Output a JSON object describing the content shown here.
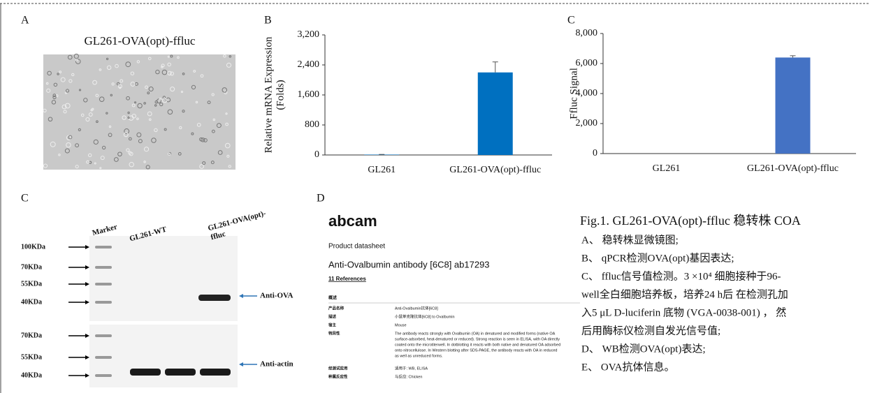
{
  "panel_a": {
    "label": "A",
    "title": "GL261-OVA(opt)-ffluc"
  },
  "chart_data": [
    {
      "type": "bar",
      "panel_label": "B",
      "ylabel": [
        "Relative mRNA Expression",
        "(Folds)"
      ],
      "categories": [
        "GL261",
        "GL261-OVA(opt)-ffluc"
      ],
      "values": [
        10,
        2200
      ],
      "errors": [
        5,
        280
      ],
      "color": "#0070c0",
      "ylim": [
        0,
        3200
      ],
      "yticks": [
        0,
        800,
        {
          "value": 1600,
          "label": "1,600"
        },
        {
          "value": 2400,
          "label": "2,400"
        },
        {
          "value": 3200,
          "label": "3,200"
        }
      ]
    },
    {
      "type": "bar",
      "panel_label": "C",
      "ylabel": [
        "Ffluc Signal"
      ],
      "categories": [
        "GL261",
        "GL261-OVA(opt)-ffluc"
      ],
      "values": [
        0,
        6400
      ],
      "errors": [
        0,
        120
      ],
      "color": "#4472c4",
      "ylim": [
        0,
        8000
      ],
      "yticks": [
        0,
        {
          "value": 2000,
          "label": "2,000"
        },
        {
          "value": 4000,
          "label": "4,000"
        },
        {
          "value": 6000,
          "label": "6,000"
        },
        {
          "value": 8000,
          "label": "8,000"
        }
      ]
    }
  ],
  "blot": {
    "label": "C",
    "lanes": [
      "Marker",
      "GL261-WT",
      [
        "GL261-OVA(opt)-",
        "ffluc"
      ]
    ],
    "markers_top": [
      "100KDa",
      "70KDa",
      "55KDa",
      "40KDa"
    ],
    "markers_bottom": [
      "70KDa",
      "55KDa",
      "40KDa"
    ],
    "bands": [
      "Anti-OVA",
      "Anti-actin"
    ]
  },
  "datasheet": {
    "label": "D",
    "logo": "abcam",
    "subtitle": "Product datasheet",
    "product": "Anti-Ovalbumin antibody [6C8] ab17293",
    "references": "11 References",
    "section": "概述",
    "rows": [
      [
        "产品名称",
        [
          "Anti-Ovalbumin抗体[6C8]"
        ]
      ],
      [
        "描述",
        [
          "小鼠单克隆抗体[6C8] to Ovalbumin"
        ]
      ],
      [
        "宿主",
        [
          "Mouse"
        ]
      ],
      [
        "特异性",
        [
          "The antibody reacts strongly with Ovalbumin (OA) in denatured and modified forms (native OA",
          "surface-adsorbed, heat-denatured or reduced). Strong reaction is seen in ELISA, with OA directly",
          "coated onto the microtiterwell. In dotblotting it reacts with both native and denatured OA adsorbed",
          "onto nitrocellulose. In Western blotting after SDS-PAGE, the antibody reacts with OA in reduced",
          "as well as unreduced forms."
        ]
      ],
      [
        "经测试应用",
        [
          "适用于: WB, ELISA"
        ]
      ],
      [
        "种属反应性",
        [
          "与反应: Chicken"
        ]
      ]
    ]
  },
  "caption": {
    "title": "Fig.1. GL261-OVA(opt)-ffluc 稳转株 COA",
    "lines": [
      "A、 稳转株显微镜图;",
      "B、 qPCR检测OVA(opt)基因表达;",
      "C、 ffluc信号值检测。3 ×10⁴ 细胞接种于96-",
      "well全白细胞培养板，培养24 h后 在检测孔加",
      "入5 μL D-luciferin 底物 (VGA-0038-001) ， 然",
      "后用酶标仪检测自发光信号值;",
      "D、 WB检测OVA(opt)表达;",
      "E、 OVA抗体信息。"
    ]
  }
}
